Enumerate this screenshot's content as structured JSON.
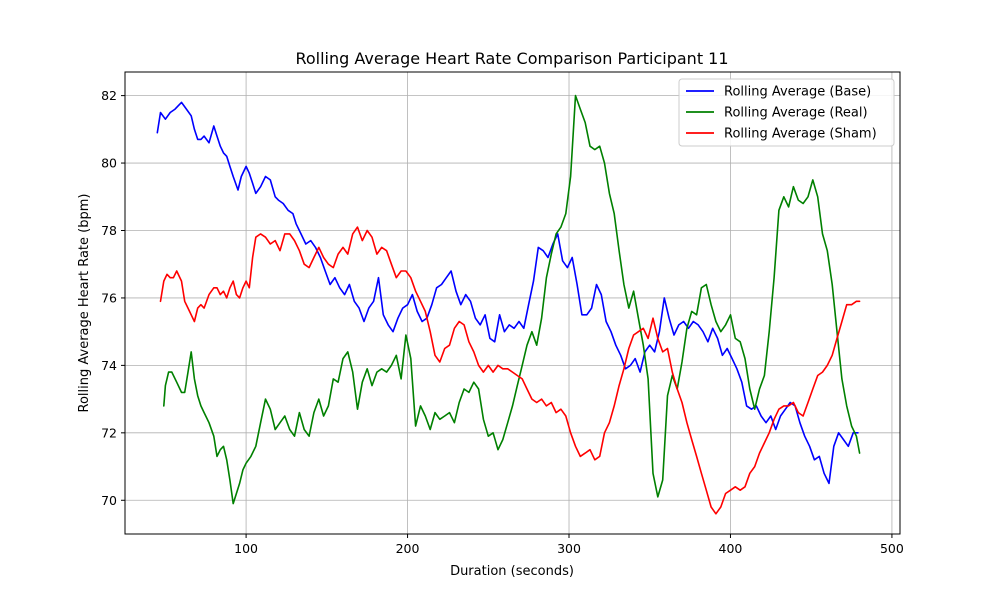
{
  "chart_data": {
    "type": "line",
    "title": "Rolling Average Heart Rate Comparison Participant 11",
    "xlabel": "Duration (seconds)",
    "ylabel": "Rolling Average Heart Rate (bpm)",
    "xlim": [
      25,
      505
    ],
    "ylim": [
      69,
      82.7
    ],
    "xticks": [
      100,
      200,
      300,
      400,
      500
    ],
    "yticks": [
      70,
      72,
      74,
      76,
      78,
      80,
      82
    ],
    "grid": true,
    "legend_position": "top-right",
    "series": [
      {
        "name": "Rolling Average (Base)",
        "color": "#0000ff",
        "x": [
          45,
          47,
          50,
          53,
          56,
          58,
          60,
          63,
          66,
          68,
          70,
          72,
          74,
          77,
          80,
          82,
          84,
          86,
          88,
          90,
          92,
          95,
          97,
          100,
          102,
          104,
          106,
          109,
          112,
          115,
          118,
          120,
          123,
          126,
          129,
          131,
          134,
          137,
          140,
          143,
          146,
          149,
          152,
          155,
          158,
          161,
          164,
          167,
          170,
          173,
          176,
          179,
          182,
          185,
          188,
          191,
          194,
          197,
          200,
          203,
          206,
          209,
          212,
          215,
          218,
          221,
          224,
          227,
          230,
          233,
          236,
          239,
          242,
          245,
          248,
          251,
          254,
          257,
          260,
          263,
          266,
          269,
          272,
          275,
          278,
          281,
          284,
          287,
          290,
          293,
          296,
          299,
          302,
          305,
          308,
          311,
          314,
          317,
          320,
          323,
          326,
          329,
          332,
          335,
          338,
          341,
          344,
          347,
          350,
          353,
          356,
          359,
          362,
          365,
          368,
          371,
          374,
          377,
          380,
          383,
          386,
          389,
          392,
          395,
          398,
          401,
          404,
          407,
          410,
          413,
          416,
          419,
          422,
          425,
          428,
          431,
          434,
          437,
          440,
          443,
          446,
          449,
          452,
          455,
          458,
          461,
          464,
          467,
          470,
          473,
          476,
          479
        ],
        "y": [
          80.9,
          81.5,
          81.3,
          81.5,
          81.6,
          81.7,
          81.8,
          81.6,
          81.4,
          81.0,
          80.7,
          80.7,
          80.8,
          80.6,
          81.1,
          80.8,
          80.5,
          80.3,
          80.2,
          79.9,
          79.6,
          79.2,
          79.6,
          79.9,
          79.7,
          79.4,
          79.1,
          79.3,
          79.6,
          79.5,
          79.0,
          78.9,
          78.8,
          78.6,
          78.5,
          78.2,
          77.9,
          77.6,
          77.7,
          77.5,
          77.2,
          76.8,
          76.4,
          76.6,
          76.3,
          76.1,
          76.4,
          75.9,
          75.7,
          75.3,
          75.7,
          75.9,
          76.6,
          75.5,
          75.2,
          75.0,
          75.4,
          75.7,
          75.8,
          76.1,
          75.6,
          75.3,
          75.4,
          75.8,
          76.3,
          76.4,
          76.6,
          76.8,
          76.2,
          75.8,
          76.1,
          75.9,
          75.4,
          75.2,
          75.5,
          74.8,
          74.7,
          75.5,
          75.0,
          75.2,
          75.1,
          75.3,
          75.1,
          75.8,
          76.5,
          77.5,
          77.4,
          77.2,
          77.6,
          77.9,
          77.1,
          76.9,
          77.2,
          76.4,
          75.5,
          75.5,
          75.7,
          76.4,
          76.1,
          75.3,
          75.0,
          74.6,
          74.3,
          73.9,
          74.0,
          74.2,
          73.8,
          74.4,
          74.6,
          74.4,
          75.0,
          76.0,
          75.4,
          74.9,
          75.2,
          75.3,
          75.1,
          75.3,
          75.2,
          75.0,
          74.7,
          75.1,
          74.8,
          74.3,
          74.5,
          74.2,
          73.9,
          73.5,
          72.8,
          72.7,
          72.8,
          72.5,
          72.3,
          72.5,
          72.1,
          72.5,
          72.7,
          72.9,
          72.8,
          72.3,
          71.9,
          71.6,
          71.2,
          71.3,
          70.8,
          70.5,
          71.6,
          72.0,
          71.8,
          71.6,
          72.0,
          72.0
        ]
      },
      {
        "name": "Rolling Average (Real)",
        "color": "#008000",
        "x": [
          49,
          50,
          52,
          54,
          57,
          60,
          62,
          64,
          66,
          68,
          70,
          72,
          74,
          77,
          80,
          82,
          84,
          86,
          88,
          90,
          92,
          94,
          96,
          98,
          100,
          103,
          106,
          109,
          112,
          115,
          118,
          121,
          124,
          127,
          130,
          133,
          136,
          139,
          142,
          145,
          148,
          151,
          154,
          157,
          160,
          163,
          166,
          169,
          172,
          175,
          178,
          181,
          184,
          187,
          190,
          193,
          196,
          199,
          202,
          205,
          208,
          211,
          214,
          217,
          220,
          223,
          226,
          229,
          232,
          235,
          238,
          241,
          244,
          247,
          250,
          253,
          256,
          259,
          262,
          265,
          268,
          271,
          274,
          277,
          280,
          283,
          286,
          289,
          292,
          295,
          298,
          301,
          304,
          307,
          310,
          313,
          316,
          319,
          322,
          325,
          328,
          331,
          334,
          337,
          340,
          343,
          346,
          349,
          352,
          355,
          358,
          361,
          364,
          367,
          370,
          373,
          376,
          379,
          382,
          385,
          388,
          391,
          394,
          397,
          400,
          403,
          406,
          409,
          412,
          415,
          418,
          421,
          424,
          427,
          430,
          433,
          436,
          439,
          442,
          445,
          448,
          451,
          454,
          457,
          460,
          463,
          466,
          469,
          472,
          475,
          478,
          480
        ],
        "y": [
          72.8,
          73.4,
          73.8,
          73.8,
          73.5,
          73.2,
          73.2,
          73.8,
          74.4,
          73.6,
          73.1,
          72.8,
          72.6,
          72.3,
          71.9,
          71.3,
          71.5,
          71.6,
          71.2,
          70.6,
          69.9,
          70.2,
          70.5,
          70.9,
          71.1,
          71.3,
          71.6,
          72.3,
          73.0,
          72.7,
          72.1,
          72.3,
          72.5,
          72.1,
          71.9,
          72.6,
          72.1,
          71.9,
          72.6,
          73.0,
          72.5,
          72.8,
          73.6,
          73.5,
          74.2,
          74.4,
          73.8,
          72.7,
          73.5,
          73.9,
          73.4,
          73.8,
          73.9,
          73.8,
          74.0,
          74.3,
          73.6,
          74.9,
          74.2,
          72.2,
          72.8,
          72.5,
          72.1,
          72.6,
          72.4,
          72.5,
          72.6,
          72.3,
          72.9,
          73.3,
          73.2,
          73.5,
          73.3,
          72.4,
          71.9,
          72.0,
          71.5,
          71.8,
          72.3,
          72.8,
          73.4,
          74.0,
          74.6,
          75.0,
          74.6,
          75.4,
          76.6,
          77.3,
          77.9,
          78.1,
          78.5,
          79.6,
          82.0,
          81.6,
          81.2,
          80.5,
          80.4,
          80.5,
          80.0,
          79.1,
          78.5,
          77.4,
          76.4,
          75.7,
          76.2,
          75.4,
          74.6,
          73.6,
          70.8,
          70.1,
          70.6,
          73.1,
          73.7,
          73.3,
          74.1,
          75.1,
          75.6,
          75.5,
          76.3,
          76.4,
          75.8,
          75.3,
          75.0,
          75.2,
          75.5,
          74.8,
          74.7,
          74.2,
          73.3,
          72.7,
          73.3,
          73.7,
          75.0,
          76.6,
          78.6,
          79.0,
          78.7,
          79.3,
          78.9,
          78.8,
          79.0,
          79.5,
          79.0,
          77.9,
          77.4,
          76.4,
          75.0,
          73.6,
          72.8,
          72.2,
          71.9,
          71.4
        ]
      },
      {
        "name": "Rolling Average (Sham)",
        "color": "#ff0000",
        "x": [
          47,
          49,
          51,
          53,
          55,
          57,
          60,
          62,
          64,
          66,
          68,
          70,
          72,
          74,
          77,
          80,
          82,
          84,
          86,
          88,
          90,
          92,
          94,
          96,
          98,
          100,
          102,
          104,
          106,
          109,
          112,
          115,
          118,
          121,
          124,
          127,
          130,
          133,
          136,
          139,
          142,
          145,
          148,
          151,
          154,
          157,
          160,
          163,
          166,
          169,
          172,
          175,
          178,
          181,
          184,
          187,
          190,
          193,
          196,
          199,
          202,
          205,
          208,
          211,
          214,
          217,
          220,
          223,
          226,
          229,
          232,
          235,
          238,
          241,
          244,
          247,
          250,
          253,
          256,
          259,
          262,
          265,
          268,
          271,
          274,
          277,
          280,
          283,
          286,
          289,
          292,
          295,
          298,
          301,
          304,
          307,
          310,
          313,
          316,
          319,
          322,
          325,
          328,
          331,
          334,
          337,
          340,
          343,
          346,
          349,
          352,
          355,
          358,
          361,
          364,
          367,
          370,
          373,
          376,
          379,
          382,
          385,
          388,
          391,
          394,
          397,
          400,
          403,
          406,
          409,
          412,
          415,
          418,
          421,
          424,
          427,
          430,
          433,
          436,
          439,
          442,
          445,
          448,
          451,
          454,
          457,
          460,
          463,
          466,
          469,
          472,
          475,
          478,
          480
        ],
        "y": [
          75.9,
          76.5,
          76.7,
          76.6,
          76.6,
          76.8,
          76.5,
          75.9,
          75.7,
          75.5,
          75.3,
          75.7,
          75.8,
          75.7,
          76.1,
          76.3,
          76.3,
          76.1,
          76.2,
          76.0,
          76.3,
          76.5,
          76.1,
          76.0,
          76.3,
          76.5,
          76.3,
          77.2,
          77.8,
          77.9,
          77.8,
          77.6,
          77.7,
          77.4,
          77.9,
          77.9,
          77.7,
          77.4,
          77.0,
          76.9,
          77.2,
          77.5,
          77.2,
          77.0,
          76.9,
          77.3,
          77.5,
          77.3,
          77.9,
          78.1,
          77.7,
          78.0,
          77.8,
          77.3,
          77.5,
          77.4,
          77.0,
          76.6,
          76.8,
          76.8,
          76.6,
          76.2,
          75.9,
          75.6,
          75.0,
          74.3,
          74.1,
          74.5,
          74.6,
          75.1,
          75.3,
          75.2,
          74.7,
          74.4,
          74.0,
          73.8,
          74.0,
          73.8,
          74.0,
          73.9,
          73.9,
          73.8,
          73.7,
          73.6,
          73.3,
          73.0,
          72.9,
          73.0,
          72.8,
          72.9,
          72.6,
          72.7,
          72.5,
          72.0,
          71.6,
          71.3,
          71.4,
          71.5,
          71.2,
          71.3,
          72.0,
          72.3,
          72.8,
          73.4,
          73.9,
          74.5,
          74.9,
          75.0,
          75.1,
          74.8,
          75.4,
          74.8,
          74.4,
          74.5,
          73.8,
          73.3,
          72.9,
          72.3,
          71.8,
          71.3,
          70.8,
          70.3,
          69.8,
          69.6,
          69.8,
          70.2,
          70.3,
          70.4,
          70.3,
          70.4,
          70.8,
          71.0,
          71.4,
          71.7,
          72.0,
          72.4,
          72.7,
          72.8,
          72.8,
          72.9,
          72.6,
          72.5,
          72.9,
          73.3,
          73.7,
          73.8,
          74.0,
          74.3,
          74.8,
          75.3,
          75.8,
          75.8,
          75.9,
          75.9
        ]
      }
    ]
  }
}
